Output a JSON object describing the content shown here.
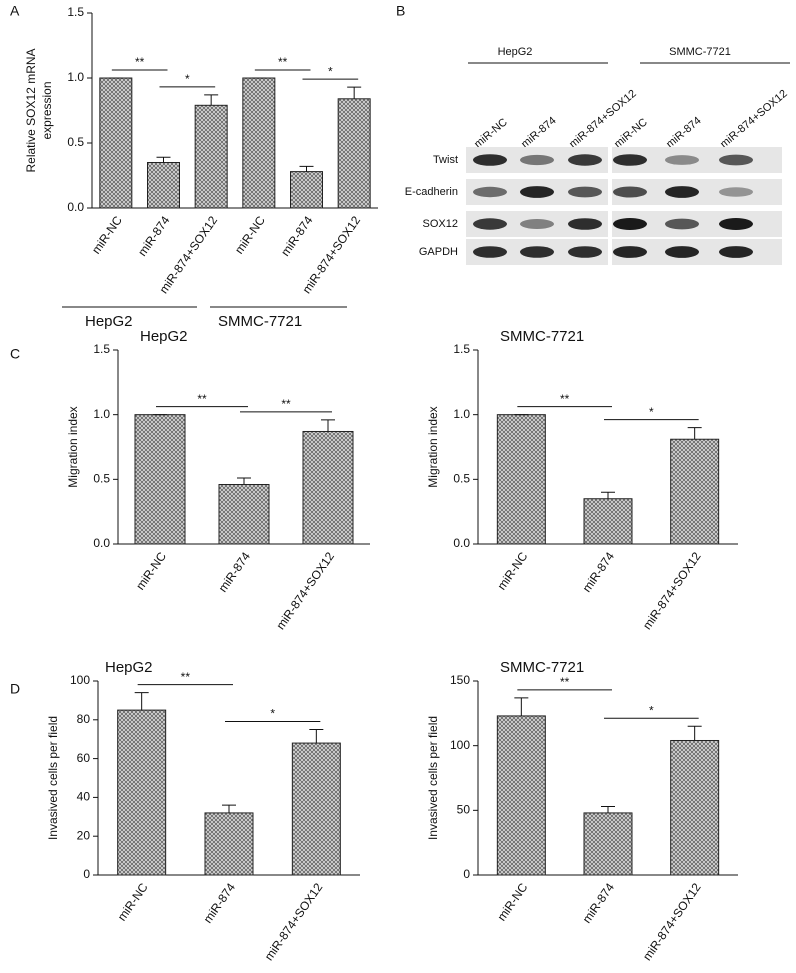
{
  "panel_labels": [
    "A",
    "B",
    "C",
    "D"
  ],
  "blot": {
    "cell_lines": [
      "HepG2",
      "SMMC-7721"
    ],
    "lanes": [
      "miR-NC",
      "miR-874",
      "miR-874+SOX12",
      "miR-NC",
      "miR-874",
      "miR-874+SOX12"
    ],
    "proteins": [
      "Twist",
      "E-cadherin",
      "SOX12",
      "GAPDH"
    ]
  },
  "chart_data": [
    {
      "type": "bar",
      "ylabel": [
        "Relative SOX12 mRNA",
        "expression"
      ],
      "categories": [
        "miR-NC",
        "miR-874",
        "miR-874+SOX12",
        "miR-NC",
        "miR-874",
        "miR-874+SOX12"
      ],
      "values": [
        1.0,
        0.35,
        0.79,
        1.0,
        0.28,
        0.84
      ],
      "errors": [
        0,
        0.04,
        0.08,
        0,
        0.04,
        0.09
      ],
      "groups": [
        "HepG2",
        "SMMC-7721"
      ],
      "significance": [
        "**",
        "*",
        "**",
        "*"
      ],
      "ylim": [
        0,
        1.5
      ],
      "yticks": [
        {
          "value": 0,
          "label": "0.0"
        },
        {
          "value": 0.5,
          "label": "0.5"
        },
        {
          "value": 1,
          "label": "1.0"
        },
        {
          "value": 1.5,
          "label": "1.5"
        }
      ]
    },
    {
      "type": "bar",
      "title": "HepG2",
      "ylabel": [
        "Migration index"
      ],
      "categories": [
        "miR-NC",
        "miR-874",
        "miR-874+SOX12"
      ],
      "values": [
        1.0,
        0.46,
        0.87
      ],
      "errors": [
        0,
        0.05,
        0.09
      ],
      "significance": [
        "**",
        "**"
      ],
      "ylim": [
        0,
        1.5
      ],
      "yticks": [
        {
          "value": 0,
          "label": "0.0"
        },
        {
          "value": 0.5,
          "label": "0.5"
        },
        {
          "value": 1,
          "label": "1.0"
        },
        {
          "value": 1.5,
          "label": "1.5"
        }
      ]
    },
    {
      "type": "bar",
      "title": "SMMC-7721",
      "ylabel": [
        "Migration index"
      ],
      "categories": [
        "miR-NC",
        "miR-874",
        "miR-874+SOX12"
      ],
      "values": [
        1.0,
        0.35,
        0.81
      ],
      "errors": [
        0,
        0.05,
        0.09
      ],
      "significance": [
        "**",
        "*"
      ],
      "ylim": [
        0,
        1.5
      ],
      "yticks": [
        {
          "value": 0,
          "label": "0.0"
        },
        {
          "value": 0.5,
          "label": "0.5"
        },
        {
          "value": 1,
          "label": "1.0"
        },
        {
          "value": 1.5,
          "label": "1.5"
        }
      ]
    },
    {
      "type": "bar",
      "title": "HepG2",
      "ylabel": [
        "Invasived cells per field"
      ],
      "categories": [
        "miR-NC",
        "miR-874",
        "miR-874+SOX12"
      ],
      "values": [
        85,
        32,
        68
      ],
      "errors": [
        9,
        4,
        7
      ],
      "significance": [
        "**",
        "*"
      ],
      "ylim": [
        0,
        100
      ],
      "yticks": [
        0,
        20,
        40,
        60,
        80,
        100
      ]
    },
    {
      "type": "bar",
      "title": "SMMC-7721",
      "ylabel": [
        "Invasived cells per field"
      ],
      "categories": [
        "miR-NC",
        "miR-874",
        "miR-874+SOX12"
      ],
      "values": [
        123,
        48,
        104
      ],
      "errors": [
        14,
        5,
        11
      ],
      "significance": [
        "**",
        "*"
      ],
      "ylim": [
        0,
        150
      ],
      "yticks": [
        0,
        50,
        100,
        150
      ]
    }
  ]
}
